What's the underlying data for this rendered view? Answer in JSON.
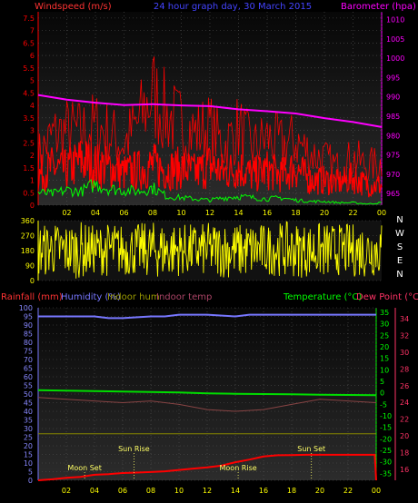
{
  "header": {
    "windspeed_label": "Windspeed (m/s)",
    "title": "24 hour graph day, 30 March 2015",
    "barometer_label": "Barometer (hpa)"
  },
  "bottom_labels": {
    "rainfall": "Rainfall (mm)",
    "humidity": "Humidity (%)",
    "indoor_hum": "Indoor hum",
    "indoor_temp": "Indoor temp",
    "temperature": "Temperature (°C)",
    "dew_point": "Dew Point (°C)"
  },
  "annotations": {
    "sun_rise": "Sun Rise",
    "sun_set": "Sun Set",
    "moon_set": "Moon Set",
    "moon_rise": "Moon Rise"
  },
  "direction_letters": [
    "N",
    "W",
    "S",
    "E",
    "N"
  ],
  "colors": {
    "wind": "#ff0000",
    "gust": "#ff0000",
    "barometer": "#ff00ff",
    "avg_wind": "#00ff00",
    "direction": "#ffff00",
    "humidity": "#7777ff",
    "temperature": "#00dd00",
    "dew_point": "#ff3366",
    "indoor_temp": "#884444",
    "indoor_hum": "#888800",
    "rainfall": "#ff0000"
  },
  "chart_data": [
    {
      "type": "line",
      "title": "24 hour graph day, 30 March 2015",
      "x_tick_labels": [
        "02",
        "04",
        "06",
        "08",
        "10",
        "12",
        "14",
        "16",
        "18",
        "20",
        "22",
        "00"
      ],
      "x_range_hours": [
        0,
        24
      ],
      "y_left_label": "Windspeed (m/s)",
      "y_left_ticks": [
        "0",
        "0.5",
        "1",
        "1.5",
        "2",
        "2.5",
        "3",
        "3.5",
        "4",
        "4.5",
        "5",
        "5.5",
        "6",
        "6.5",
        "7",
        "7.5"
      ],
      "ylim_left": [
        0,
        7.75
      ],
      "y_right_label": "Barometer (hpa)",
      "y_right_ticks": [
        "965",
        "970",
        "975",
        "980",
        "985",
        "990",
        "995",
        "1000",
        "1005",
        "1010"
      ],
      "ylim_right": [
        962,
        1012
      ],
      "series": [
        {
          "name": "Barometer",
          "x": [
            0,
            2,
            4,
            6,
            8,
            10,
            12,
            14,
            16,
            18,
            20,
            22,
            24
          ],
          "values": [
            990.5,
            989.3,
            988.5,
            987.9,
            988.1,
            987.8,
            987.6,
            986.8,
            986.3,
            985.7,
            984.5,
            983.5,
            982.2
          ]
        },
        {
          "name": "Average wind",
          "x": [
            0,
            1,
            2,
            3,
            4,
            5,
            6,
            7,
            8,
            9,
            10,
            11,
            12,
            13,
            14,
            15,
            16,
            17,
            18,
            19,
            20,
            21,
            22,
            23,
            24
          ],
          "values": [
            0.5,
            0.45,
            0.6,
            0.55,
            0.85,
            0.65,
            0.6,
            0.55,
            0.7,
            0.35,
            0.3,
            0.25,
            0.2,
            0.3,
            0.35,
            0.3,
            0.25,
            0.3,
            0.2,
            0.15,
            0.15,
            0.1,
            0.1,
            0.05,
            0.1
          ]
        },
        {
          "name": "Wind speed",
          "x": [
            0,
            1,
            2,
            3,
            4,
            5,
            6,
            7,
            8,
            9,
            10,
            11,
            12,
            13,
            14,
            15,
            16,
            17,
            18,
            19,
            20,
            21,
            22,
            23,
            24
          ],
          "values": [
            1.2,
            1.5,
            1.4,
            1.8,
            1.6,
            1.5,
            1.3,
            1.4,
            1.6,
            1.4,
            1.5,
            1.3,
            1.6,
            1.3,
            1.5,
            1.2,
            1.4,
            1.2,
            1.5,
            1.0,
            1.0,
            0.9,
            1.1,
            0.8,
            0.8
          ]
        },
        {
          "name": "Gust",
          "x": [
            0,
            1,
            2,
            3,
            4,
            5,
            6,
            7,
            8,
            9,
            10,
            11,
            12,
            13,
            14,
            15,
            16,
            17,
            18,
            19,
            20,
            21,
            22,
            23,
            24
          ],
          "values": [
            2.9,
            4.1,
            4.4,
            4.3,
            4.7,
            4.2,
            3.6,
            4.9,
            6.6,
            5.3,
            4.8,
            4.3,
            4.6,
            3.5,
            4.6,
            3.4,
            4.0,
            3.6,
            3.8,
            3.1,
            2.7,
            2.2,
            2.8,
            2.3,
            2.5
          ]
        }
      ]
    },
    {
      "type": "scatter",
      "title": "",
      "x_tick_labels": [
        "02",
        "04",
        "06",
        "08",
        "10",
        "12",
        "14",
        "16",
        "18",
        "20",
        "22",
        "00"
      ],
      "y_ticks": [
        "0",
        "90",
        "180",
        "270",
        "360"
      ],
      "ylim": [
        0,
        360
      ],
      "series": [
        {
          "name": "Wind direction",
          "x": [
            0,
            1,
            2,
            3,
            4,
            5,
            6,
            7,
            8,
            9,
            10,
            11,
            12,
            13,
            14,
            15,
            16,
            17,
            18,
            19,
            20,
            21,
            22,
            23,
            24
          ],
          "min": [
            20,
            30,
            15,
            10,
            40,
            20,
            25,
            30,
            15,
            10,
            30,
            20,
            25,
            15,
            10,
            20,
            30,
            25,
            15,
            20,
            10,
            30,
            20,
            15,
            25
          ],
          "max": [
            340,
            350,
            345,
            355,
            330,
            350,
            340,
            345,
            355,
            350,
            345,
            340,
            350,
            355,
            345,
            350,
            340,
            355,
            350,
            345,
            350,
            340,
            345,
            350,
            355
          ]
        }
      ]
    },
    {
      "type": "line",
      "title": "",
      "x_tick_labels": [
        "02",
        "04",
        "06",
        "08",
        "10",
        "12",
        "14",
        "16",
        "18",
        "20",
        "22",
        "00"
      ],
      "y_left_label": "Rainfall (mm) / Humidity (%)",
      "y_left_ticks": [
        "0",
        "5",
        "10",
        "15",
        "20",
        "25",
        "30",
        "35",
        "40",
        "45",
        "50",
        "55",
        "60",
        "65",
        "70",
        "75",
        "80",
        "85",
        "90",
        "95",
        "100"
      ],
      "ylim_left": [
        0,
        100
      ],
      "y_right_temp_label": "Temperature (°C)",
      "y_right_temp_ticks": [
        "35",
        "30",
        "25",
        "20",
        "15",
        "10",
        "5",
        "0",
        "-5",
        "-10",
        "-15",
        "-20",
        "-25",
        "-30",
        "-35"
      ],
      "ylim_right_temp": [
        -38,
        37
      ],
      "y_right_dew_label": "Dew Point (°C)",
      "y_right_dew_ticks": [
        "34",
        "32",
        "30",
        "28",
        "26",
        "24",
        "22",
        "20",
        "18",
        "16"
      ],
      "series": [
        {
          "name": "Humidity",
          "x": [
            0,
            2,
            4,
            5,
            6,
            8,
            9,
            10,
            12,
            14,
            15,
            16,
            18,
            20,
            22,
            24
          ],
          "values": [
            95,
            95,
            95,
            94,
            94,
            95,
            95,
            96,
            96,
            95,
            96,
            96,
            96,
            96,
            96,
            96
          ]
        },
        {
          "name": "Temperature",
          "x": [
            0,
            2,
            4,
            6,
            8,
            10,
            12,
            14,
            16,
            18,
            20,
            22,
            24
          ],
          "values": [
            1.2,
            1.0,
            0.8,
            0.6,
            0.4,
            0.2,
            -0.2,
            -0.4,
            -0.5,
            -0.6,
            -0.8,
            -0.9,
            -1.0
          ]
        },
        {
          "name": "Indoor temp",
          "x": [
            0,
            2,
            4,
            6,
            8,
            10,
            12,
            14,
            16,
            18,
            20,
            22,
            24
          ],
          "values": [
            48,
            47,
            46,
            45,
            46,
            44,
            41,
            40,
            41,
            44,
            47,
            46,
            45
          ]
        },
        {
          "name": "Indoor hum",
          "x": [
            0,
            24
          ],
          "values": [
            27,
            27
          ]
        },
        {
          "name": "Rainfall",
          "x": [
            0,
            1,
            2,
            3,
            4,
            5,
            6,
            7,
            8,
            9,
            10,
            11,
            12,
            13,
            14,
            15,
            16,
            17,
            18,
            19,
            20,
            21,
            22,
            23,
            23.9,
            24
          ],
          "values": [
            0,
            0.6,
            1.4,
            2.0,
            3.2,
            3.6,
            4.2,
            4.5,
            4.8,
            5.2,
            6.0,
            6.8,
            7.5,
            8.5,
            10.5,
            12.0,
            13.8,
            14.5,
            14.6,
            14.8,
            14.8,
            14.8,
            14.8,
            14.8,
            14.8,
            0
          ]
        }
      ],
      "annotations": [
        {
          "text": "Sun Rise",
          "x": 6.8
        },
        {
          "text": "Moon Set",
          "x": 3.3
        },
        {
          "text": "Moon Rise",
          "x": 14.2
        },
        {
          "text": "Sun Set",
          "x": 19.4
        }
      ]
    }
  ]
}
